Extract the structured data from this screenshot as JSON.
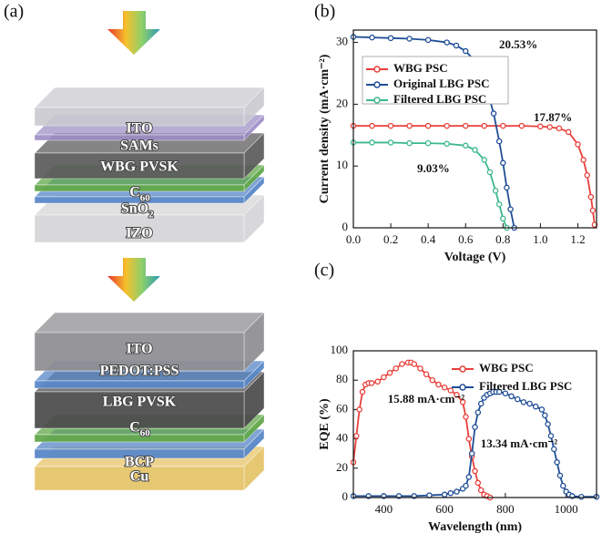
{
  "panel_a": {
    "label": "(a)",
    "stacks": [
      {
        "layers": [
          {
            "label": "ITO"
          },
          {
            "label": "SAMs"
          },
          {
            "label": "WBG  PVSK"
          },
          {
            "label": "C",
            "subscript": "60"
          },
          {
            "label": "SnO",
            "subscript": "2"
          },
          {
            "label": "IZO"
          }
        ]
      },
      {
        "layers": [
          {
            "label": "ITO"
          },
          {
            "label": "PEDOT:PSS"
          },
          {
            "label": "LBG PVSK"
          },
          {
            "label": "C",
            "subscript": "60"
          },
          {
            "label": "BCP"
          },
          {
            "label": "Cu"
          }
        ]
      }
    ]
  },
  "chart_data": [
    {
      "type": "line",
      "panel_label": "(b)",
      "xlabel": "Voltage (V)",
      "ylabel": "Current density (mA·cm⁻²)",
      "xlim": [
        0,
        1.3
      ],
      "ylim": [
        0,
        32
      ],
      "xticks": [
        {
          "value": 0,
          "label": "0.0"
        },
        0.2,
        0.4,
        0.6,
        0.8,
        {
          "value": 1,
          "label": "1.0"
        },
        1.2
      ],
      "yticks": [
        0,
        10,
        20,
        30
      ],
      "legend": "upper left",
      "series": [
        {
          "name": "WBG PSC",
          "color": "#e8403a",
          "x": [
            0,
            0.1,
            0.2,
            0.3,
            0.4,
            0.5,
            0.6,
            0.7,
            0.8,
            0.9,
            1.0,
            1.05,
            1.1,
            1.15,
            1.2,
            1.23,
            1.25,
            1.27,
            1.28,
            1.29
          ],
          "values": [
            16.5,
            16.5,
            16.5,
            16.5,
            16.5,
            16.5,
            16.5,
            16.5,
            16.5,
            16.5,
            16.4,
            16.3,
            16.1,
            15.5,
            13.5,
            11,
            8.5,
            5,
            2.8,
            0.5
          ]
        },
        {
          "name": "Original LBG PSC",
          "color": "#1f4e96",
          "x": [
            0,
            0.1,
            0.2,
            0.3,
            0.4,
            0.5,
            0.55,
            0.6,
            0.65,
            0.7,
            0.75,
            0.78,
            0.8,
            0.82,
            0.84,
            0.86
          ],
          "values": [
            30.9,
            30.8,
            30.7,
            30.6,
            30.4,
            30,
            29.5,
            28.6,
            27,
            24,
            18.5,
            14,
            10.5,
            6.5,
            3,
            0
          ]
        },
        {
          "name": "Filtered LBG PSC",
          "color": "#3cb88a",
          "x": [
            0,
            0.1,
            0.2,
            0.3,
            0.4,
            0.5,
            0.6,
            0.65,
            0.7,
            0.73,
            0.76,
            0.78,
            0.8,
            0.82
          ],
          "values": [
            13.8,
            13.8,
            13.8,
            13.7,
            13.7,
            13.6,
            13.3,
            12.6,
            11,
            9,
            6,
            3.8,
            1.5,
            0
          ]
        }
      ],
      "annotations": [
        {
          "text": "20.53%"
        },
        {
          "text": "17.87%"
        },
        {
          "text": "9.03%"
        }
      ]
    },
    {
      "type": "line",
      "panel_label": "(c)",
      "xlabel": "Wavelength (nm)",
      "ylabel": "EQE (%)",
      "xlim": [
        300,
        1100
      ],
      "ylim": [
        0,
        100
      ],
      "xticks": [
        400,
        600,
        800,
        1000
      ],
      "yticks": [
        0,
        20,
        40,
        60,
        80,
        100
      ],
      "legend": "upper right",
      "series": [
        {
          "name": "WBG PSC",
          "color": "#e8403a",
          "x": [
            300,
            310,
            320,
            330,
            340,
            350,
            360,
            380,
            400,
            420,
            440,
            460,
            480,
            490,
            500,
            520,
            540,
            560,
            580,
            600,
            620,
            640,
            660,
            670,
            680,
            690,
            700,
            710,
            720,
            730,
            740,
            750
          ],
          "values": [
            24,
            42,
            60,
            72,
            77,
            78,
            78,
            79,
            82,
            85,
            88,
            91,
            92,
            92,
            91,
            88,
            84,
            80,
            77,
            75,
            73,
            70,
            65,
            55,
            40,
            28,
            18,
            10,
            5,
            2,
            1,
            0
          ]
        },
        {
          "name": "Filtered LBG PSC",
          "color": "#1f4e96",
          "x": [
            300,
            350,
            400,
            450,
            500,
            550,
            600,
            620,
            640,
            660,
            670,
            680,
            690,
            700,
            710,
            720,
            730,
            740,
            750,
            760,
            770,
            780,
            800,
            820,
            840,
            860,
            880,
            900,
            920,
            930,
            940,
            950,
            960,
            970,
            980,
            990,
            1000,
            1010,
            1020,
            1050,
            1100
          ],
          "values": [
            1,
            1,
            1,
            1,
            1,
            1.5,
            2,
            3,
            4,
            6,
            8,
            14,
            30,
            48,
            58,
            64,
            68,
            70,
            71,
            72,
            72,
            72,
            71,
            69,
            67,
            65,
            64,
            62,
            60,
            56,
            50,
            42,
            33,
            24,
            15,
            8,
            4,
            2,
            1,
            0.5,
            0.5
          ]
        }
      ],
      "annotations": [
        {
          "text": "15.88 mA·cm⁻²"
        },
        {
          "text": "13.34 mA·cm⁻²"
        }
      ]
    }
  ]
}
